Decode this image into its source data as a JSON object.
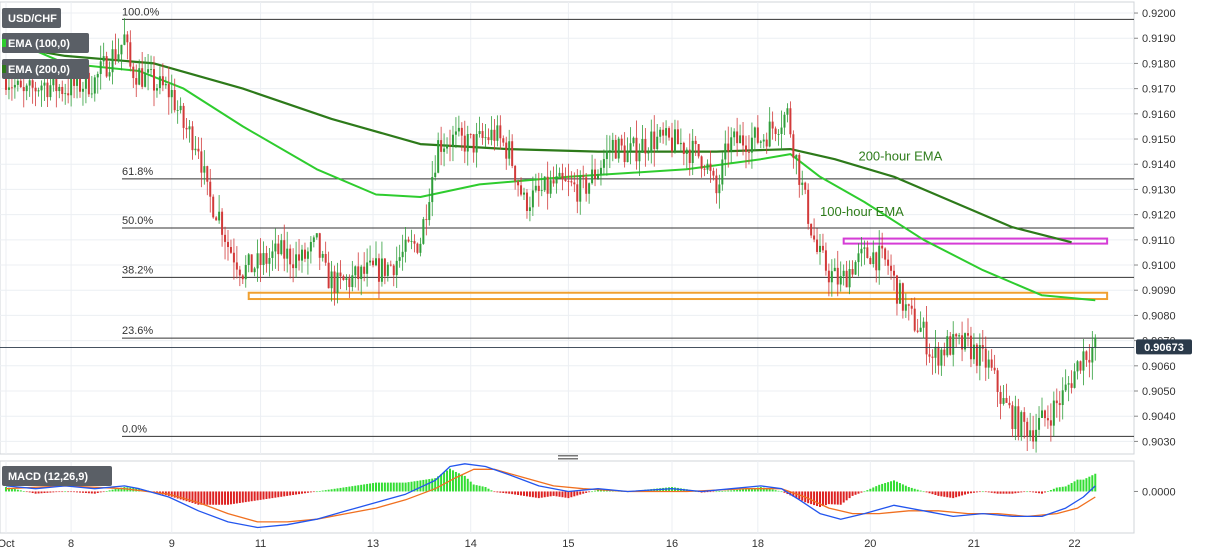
{
  "chart_data": [
    {
      "type": "candlestick",
      "symbol": "USD/CHF",
      "ylim": [
        0.9025,
        0.9202
      ],
      "y_ticks": [
        "0.9200",
        "0.9190",
        "0.9180",
        "0.9170",
        "0.9160",
        "0.9150",
        "0.9140",
        "0.9130",
        "0.9120",
        "0.9110",
        "0.9100",
        "0.9090",
        "0.9080",
        "0.9070",
        "0.9060",
        "0.9050",
        "0.9040",
        "0.9030"
      ],
      "x_labels": [
        {
          "label": "Oct",
          "index": 0
        },
        {
          "label": "8",
          "index": 22
        },
        {
          "label": "9",
          "index": 56
        },
        {
          "label": "11",
          "index": 86
        },
        {
          "label": "13",
          "index": 124
        },
        {
          "label": "14",
          "index": 157
        },
        {
          "label": "15",
          "index": 190
        },
        {
          "label": "16",
          "index": 225
        },
        {
          "label": "18",
          "index": 254
        },
        {
          "label": "20",
          "index": 292
        },
        {
          "label": "21",
          "index": 327
        },
        {
          "label": "22",
          "index": 361
        }
      ],
      "last_price": "0.90673",
      "last_value": 0.90673,
      "colors": {
        "up": "#2f9e3a",
        "down": "#d23a3a",
        "ema100": "#2ecc2e",
        "ema200": "#2d7a1a",
        "fib": "#333333",
        "orange_box": "#f0a030",
        "magenta_box": "#d63cd6",
        "price_chip": "#2b3a4a"
      },
      "legend": [
        {
          "label": "USD/CHF",
          "color": "#555555"
        },
        {
          "label": "EMA (100,0)",
          "color": "#2ecc2e"
        },
        {
          "label": "EMA (200,0)",
          "color": "#2d7a1a"
        }
      ],
      "fib_levels": [
        {
          "label": "100.0%",
          "value": 0.91975
        },
        {
          "label": "61.8%",
          "value": 0.91342
        },
        {
          "label": "50.0%",
          "value": 0.91147
        },
        {
          "label": "38.2%",
          "value": 0.90951
        },
        {
          "label": "23.6%",
          "value": 0.9071
        },
        {
          "label": "0.0%",
          "value": 0.9032
        }
      ],
      "annotations": [
        {
          "text": "200-hour EMA",
          "x_index": 288,
          "value": 0.91415
        },
        {
          "text": "100-hour EMA",
          "x_index": 275,
          "value": 0.91195
        }
      ],
      "zones": [
        {
          "name": "orange",
          "x_start_index": 82,
          "x_end_index": 372,
          "y_top": 0.9089,
          "y_bottom": 0.90865
        },
        {
          "name": "magenta",
          "x_start_index": 283,
          "x_end_index": 372,
          "y_top": 0.91105,
          "y_bottom": 0.91085
        }
      ],
      "anchors": [
        [
          0,
          0.9175
        ],
        [
          6,
          0.9167
        ],
        [
          12,
          0.9172
        ],
        [
          20,
          0.917
        ],
        [
          30,
          0.9173
        ],
        [
          35,
          0.9182
        ],
        [
          38,
          0.9185
        ],
        [
          40,
          0.919
        ],
        [
          42,
          0.9178
        ],
        [
          50,
          0.9172
        ],
        [
          56,
          0.9168
        ],
        [
          60,
          0.9155
        ],
        [
          65,
          0.9148
        ],
        [
          68,
          0.9128
        ],
        [
          72,
          0.912
        ],
        [
          75,
          0.9108
        ],
        [
          80,
          0.9098
        ],
        [
          85,
          0.91
        ],
        [
          92,
          0.9105
        ],
        [
          100,
          0.9102
        ],
        [
          105,
          0.9108
        ],
        [
          108,
          0.9096
        ],
        [
          112,
          0.9092
        ],
        [
          116,
          0.9094
        ],
        [
          122,
          0.9097
        ],
        [
          126,
          0.9098
        ],
        [
          130,
          0.91
        ],
        [
          135,
          0.9105
        ],
        [
          140,
          0.911
        ],
        [
          143,
          0.913
        ],
        [
          146,
          0.9148
        ],
        [
          150,
          0.915
        ],
        [
          158,
          0.9148
        ],
        [
          165,
          0.9152
        ],
        [
          170,
          0.9145
        ],
        [
          175,
          0.9125
        ],
        [
          180,
          0.9128
        ],
        [
          185,
          0.9132
        ],
        [
          195,
          0.913
        ],
        [
          200,
          0.9138
        ],
        [
          205,
          0.9148
        ],
        [
          210,
          0.9144
        ],
        [
          218,
          0.915
        ],
        [
          228,
          0.9148
        ],
        [
          236,
          0.9142
        ],
        [
          240,
          0.9128
        ],
        [
          244,
          0.9148
        ],
        [
          250,
          0.915
        ],
        [
          255,
          0.915
        ],
        [
          260,
          0.9156
        ],
        [
          264,
          0.916
        ],
        [
          267,
          0.9142
        ],
        [
          270,
          0.9125
        ],
        [
          274,
          0.9105
        ],
        [
          278,
          0.9097
        ],
        [
          282,
          0.9093
        ],
        [
          286,
          0.91
        ],
        [
          292,
          0.9105
        ],
        [
          298,
          0.91
        ],
        [
          301,
          0.909
        ],
        [
          305,
          0.908
        ],
        [
          310,
          0.9073
        ],
        [
          313,
          0.9063
        ],
        [
          318,
          0.9068
        ],
        [
          325,
          0.9068
        ],
        [
          332,
          0.906
        ],
        [
          337,
          0.9045
        ],
        [
          342,
          0.9037
        ],
        [
          347,
          0.9035
        ],
        [
          352,
          0.904
        ],
        [
          357,
          0.9048
        ],
        [
          360,
          0.9055
        ],
        [
          364,
          0.9065
        ],
        [
          368,
          0.90673
        ]
      ],
      "ema100": [
        [
          0,
          0.919
        ],
        [
          20,
          0.918
        ],
        [
          45,
          0.9177
        ],
        [
          60,
          0.917
        ],
        [
          80,
          0.9155
        ],
        [
          105,
          0.9138
        ],
        [
          125,
          0.9128
        ],
        [
          140,
          0.9127
        ],
        [
          160,
          0.9132
        ],
        [
          190,
          0.9135
        ],
        [
          230,
          0.9138
        ],
        [
          255,
          0.9142
        ],
        [
          265,
          0.9144
        ],
        [
          275,
          0.9135
        ],
        [
          290,
          0.9125
        ],
        [
          310,
          0.911
        ],
        [
          330,
          0.9098
        ],
        [
          350,
          0.9088
        ],
        [
          368,
          0.9086
        ]
      ],
      "ema200": [
        [
          0,
          0.9187
        ],
        [
          20,
          0.9183
        ],
        [
          50,
          0.918
        ],
        [
          80,
          0.917
        ],
        [
          110,
          0.9158
        ],
        [
          140,
          0.9148
        ],
        [
          170,
          0.9146
        ],
        [
          200,
          0.9145
        ],
        [
          240,
          0.9145
        ],
        [
          265,
          0.9146
        ],
        [
          280,
          0.9142
        ],
        [
          300,
          0.9135
        ],
        [
          320,
          0.9125
        ],
        [
          340,
          0.9115
        ],
        [
          360,
          0.9109
        ]
      ]
    },
    {
      "type": "macd",
      "label": "MACD (12,26,9)",
      "ylim": [
        -0.0015,
        0.0011
      ],
      "y_ticks": [
        "0.0000"
      ],
      "colors": {
        "macd_line": "#2255ee",
        "signal_line": "#f07020",
        "hist_up": "#33dd33",
        "hist_down": "#dd2222"
      },
      "macd": [
        [
          0,
          0.0002
        ],
        [
          10,
          0.0001
        ],
        [
          20,
          0.0002
        ],
        [
          30,
          0.0001
        ],
        [
          40,
          0.0002
        ],
        [
          45,
          0.0001
        ],
        [
          55,
          -0.0002
        ],
        [
          65,
          -0.0007
        ],
        [
          75,
          -0.0011
        ],
        [
          85,
          -0.0013
        ],
        [
          95,
          -0.0012
        ],
        [
          105,
          -0.001
        ],
        [
          115,
          -0.0007
        ],
        [
          125,
          -0.0004
        ],
        [
          135,
          -0.0001
        ],
        [
          145,
          0.0004
        ],
        [
          150,
          0.0009
        ],
        [
          155,
          0.001
        ],
        [
          162,
          0.0009
        ],
        [
          170,
          0.0006
        ],
        [
          180,
          0.0002
        ],
        [
          190,
          0.0
        ],
        [
          200,
          0.0001
        ],
        [
          210,
          0.0
        ],
        [
          225,
          0.0001
        ],
        [
          235,
          0.0
        ],
        [
          245,
          0.0001
        ],
        [
          255,
          0.0002
        ],
        [
          262,
          0.0001
        ],
        [
          268,
          -0.0003
        ],
        [
          275,
          -0.0008
        ],
        [
          282,
          -0.001
        ],
        [
          290,
          -0.0008
        ],
        [
          300,
          -0.0005
        ],
        [
          310,
          -0.0007
        ],
        [
          320,
          -0.0009
        ],
        [
          330,
          -0.0008
        ],
        [
          340,
          -0.0009
        ],
        [
          350,
          -0.0009
        ],
        [
          358,
          -0.0006
        ],
        [
          364,
          -0.0002
        ],
        [
          368,
          0.0002
        ]
      ],
      "signal": [
        [
          0,
          0.0001
        ],
        [
          20,
          0.0002
        ],
        [
          40,
          0.0001
        ],
        [
          55,
          -0.0001
        ],
        [
          65,
          -0.0004
        ],
        [
          75,
          -0.0008
        ],
        [
          85,
          -0.0011
        ],
        [
          95,
          -0.0011
        ],
        [
          105,
          -0.001
        ],
        [
          115,
          -0.0008
        ],
        [
          125,
          -0.0006
        ],
        [
          135,
          -0.0003
        ],
        [
          145,
          0.0001
        ],
        [
          152,
          0.0005
        ],
        [
          158,
          0.0008
        ],
        [
          165,
          0.0008
        ],
        [
          175,
          0.0005
        ],
        [
          185,
          0.0002
        ],
        [
          195,
          0.0001
        ],
        [
          210,
          0.0
        ],
        [
          230,
          0.0
        ],
        [
          250,
          0.0001
        ],
        [
          262,
          0.0001
        ],
        [
          270,
          -0.0002
        ],
        [
          278,
          -0.0006
        ],
        [
          286,
          -0.0008
        ],
        [
          295,
          -0.0008
        ],
        [
          305,
          -0.0007
        ],
        [
          315,
          -0.0007
        ],
        [
          325,
          -0.0008
        ],
        [
          335,
          -0.0008
        ],
        [
          345,
          -0.0009
        ],
        [
          355,
          -0.0008
        ],
        [
          362,
          -0.0006
        ],
        [
          368,
          -0.0002
        ]
      ]
    }
  ]
}
